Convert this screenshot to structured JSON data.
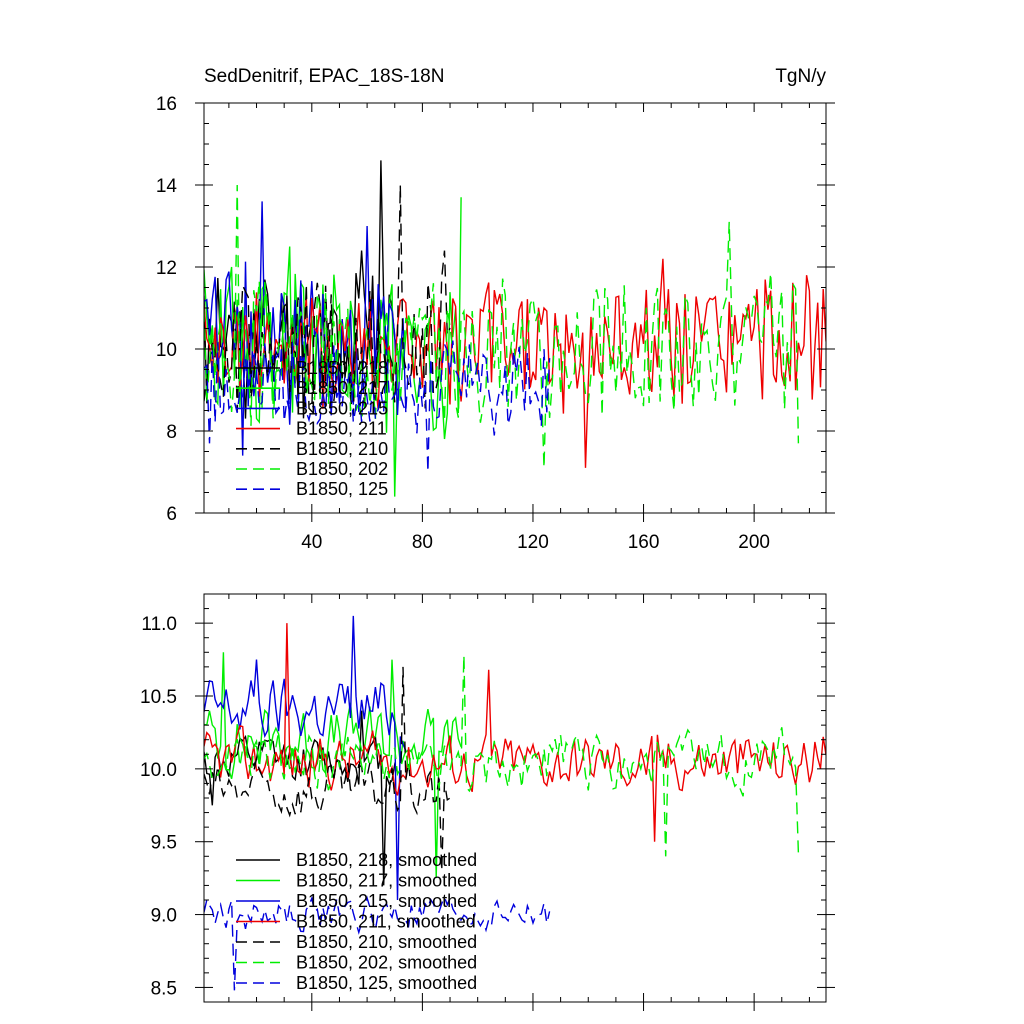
{
  "chart_data": [
    {
      "type": "line",
      "title": "SedDenitrif, EPAC_18S-18N",
      "units": "TgN/y",
      "xlim": [
        1,
        226
      ],
      "ylim": [
        6,
        16
      ],
      "xticks": [
        40,
        80,
        120,
        160,
        200
      ],
      "xtick_labels": [
        "40",
        "80",
        "120",
        "160",
        "200"
      ],
      "yticks": [
        6,
        8,
        10,
        12,
        14,
        16
      ],
      "ytick_labels": [
        "6",
        "8",
        "10",
        "12",
        "14",
        "16"
      ],
      "legend_position": "bottom-left",
      "series": [
        {
          "name": "B1850, 218",
          "color": "#000000",
          "dash": "solid",
          "length": 71,
          "mean": 10.2,
          "amp": 1.6,
          "seed": 11,
          "peaks": [
            [
              65,
              14.6
            ],
            [
              58,
              12.4
            ]
          ]
        },
        {
          "name": "B1850, 217",
          "color": "#00ee00",
          "dash": "solid",
          "length": 94,
          "mean": 10.0,
          "amp": 1.8,
          "seed": 23,
          "peaks": [
            [
              32,
              12.5
            ],
            [
              94,
              13.7
            ],
            [
              70,
              6.4
            ],
            [
              11,
              12.0
            ]
          ]
        },
        {
          "name": "B1850, 215",
          "color": "#0000dd",
          "dash": "solid",
          "length": 74,
          "mean": 10.2,
          "amp": 1.7,
          "seed": 37,
          "peaks": [
            [
              22,
              13.6
            ],
            [
              60,
              13.0
            ],
            [
              15,
              7.4
            ]
          ]
        },
        {
          "name": "B1850, 211",
          "color": "#ee0000",
          "dash": "solid",
          "length": 226,
          "mean": 10.0,
          "amp": 1.4,
          "seed": 41,
          "peaks": [
            [
              139,
              7.1
            ],
            [
              167,
              12.2
            ],
            [
              219,
              11.8
            ]
          ]
        },
        {
          "name": "B1850, 210",
          "color": "#000000",
          "dash": "long",
          "length": 90,
          "mean": 10.0,
          "amp": 1.5,
          "seed": 53,
          "peaks": [
            [
              72,
              14.0
            ],
            [
              88,
              12.4
            ]
          ]
        },
        {
          "name": "B1850, 202",
          "color": "#00ee00",
          "dash": "long",
          "length": 216,
          "mean": 10.0,
          "amp": 1.5,
          "seed": 67,
          "peaks": [
            [
              13,
              14.0
            ],
            [
              191,
              13.1
            ],
            [
              124,
              7.1
            ],
            [
              216,
              7.7
            ]
          ]
        },
        {
          "name": "B1850, 125",
          "color": "#0000dd",
          "dash": "long",
          "length": 126,
          "mean": 9.1,
          "amp": 1.0,
          "seed": 79,
          "peaks": [
            [
              82,
              7.0
            ],
            [
              3,
              7.7
            ]
          ]
        }
      ]
    },
    {
      "type": "line",
      "xlim": [
        1,
        226
      ],
      "ylim": [
        8.4,
        11.2
      ],
      "xticks": [
        40,
        80,
        120,
        160,
        200
      ],
      "yticks": [
        8.5,
        9.0,
        9.5,
        10.0,
        10.5,
        11.0
      ],
      "ytick_labels": [
        "8.5",
        "9.0",
        "9.5",
        "10.0",
        "10.5",
        "11.0"
      ],
      "legend_position": "bottom-left",
      "series": [
        {
          "name": "B1850, 218, smoothed",
          "color": "#000000",
          "dash": "solid",
          "length": 71,
          "mean": 10.05,
          "amp": 0.25,
          "seed": 12,
          "peaks": [
            [
              4,
              9.75
            ],
            [
              58,
              10.4
            ],
            [
              66,
              9.2
            ]
          ]
        },
        {
          "name": "B1850, 217, smoothed",
          "color": "#00ee00",
          "dash": "solid",
          "length": 94,
          "mean": 10.2,
          "amp": 0.35,
          "seed": 24,
          "peaks": [
            [
              8,
              10.8
            ],
            [
              69,
              10.75
            ],
            [
              85,
              9.25
            ]
          ]
        },
        {
          "name": "B1850, 215, smoothed",
          "color": "#0000dd",
          "dash": "solid",
          "length": 74,
          "mean": 10.4,
          "amp": 0.35,
          "seed": 38,
          "peaks": [
            [
              55,
              11.05
            ],
            [
              20,
              10.75
            ],
            [
              71,
              9.1
            ]
          ]
        },
        {
          "name": "B1850, 211, smoothed",
          "color": "#ee0000",
          "dash": "solid",
          "length": 226,
          "mean": 10.05,
          "amp": 0.3,
          "seed": 42,
          "peaks": [
            [
              31,
              11.0
            ],
            [
              104,
              10.68
            ],
            [
              164,
              9.5
            ],
            [
              225,
              10.22
            ]
          ]
        },
        {
          "name": "B1850, 210, smoothed",
          "color": "#000000",
          "dash": "long",
          "length": 90,
          "mean": 9.85,
          "amp": 0.3,
          "seed": 54,
          "peaks": [
            [
              73,
              10.7
            ],
            [
              87,
              9.3
            ]
          ]
        },
        {
          "name": "B1850, 202, smoothed",
          "color": "#00ee00",
          "dash": "long",
          "length": 216,
          "mean": 10.05,
          "amp": 0.3,
          "seed": 68,
          "peaks": [
            [
              95,
              10.78
            ],
            [
              168,
              9.4
            ],
            [
              216,
              9.42
            ]
          ]
        },
        {
          "name": "B1850, 125, smoothed",
          "color": "#0000dd",
          "dash": "long",
          "length": 126,
          "mean": 9.0,
          "amp": 0.18,
          "seed": 80,
          "peaks": [
            [
              12,
              8.48
            ],
            [
              2,
              9.1
            ]
          ]
        }
      ]
    }
  ]
}
